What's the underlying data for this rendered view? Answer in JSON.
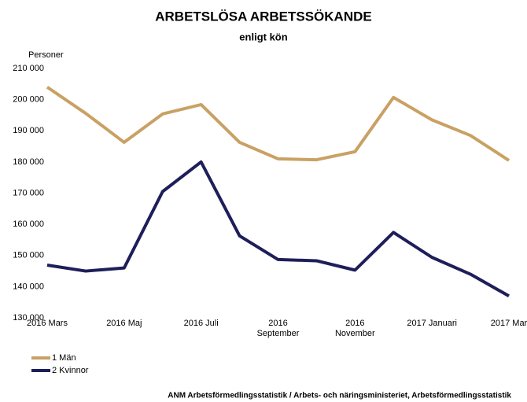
{
  "chart_data": {
    "type": "line",
    "title": "ARBETSLÖSA ARBETSSÖKANDE",
    "subtitle": "enligt kön",
    "y_label": "Personer",
    "note": "ANM Arbetsförmedlingsstatistik / Arbets- och näringsministeriet, Arbetsförmedlingsstatistik",
    "categories": [
      "2016 Mars",
      null,
      "2016 Maj",
      null,
      "2016 Juli",
      null,
      "2016\nSeptember",
      null,
      "2016\nNovember",
      null,
      "2017 Januari",
      null,
      "2017 Mar"
    ],
    "series": [
      {
        "name": "1 Män",
        "color": "#c9a164",
        "values": [
          204000,
          195600,
          186300,
          195400,
          198400,
          186300,
          181000,
          180700,
          183300,
          200700,
          193500,
          188500,
          180500
        ]
      },
      {
        "name": "2 Kvinnor",
        "color": "#1e1e5a",
        "values": [
          146900,
          145000,
          146000,
          170500,
          180000,
          156300,
          148700,
          148300,
          145300,
          157400,
          149400,
          144000,
          137000
        ]
      }
    ],
    "ylim": [
      130000,
      210000
    ],
    "yticks": [
      {
        "value": 130000,
        "label": "130 000"
      },
      {
        "value": 140000,
        "label": "140 000"
      },
      {
        "value": 150000,
        "label": "150 000"
      },
      {
        "value": 160000,
        "label": "160 000"
      },
      {
        "value": 170000,
        "label": "170 000"
      },
      {
        "value": 180000,
        "label": "180 000"
      },
      {
        "value": 190000,
        "label": "190 000"
      },
      {
        "value": 200000,
        "label": "200 000"
      },
      {
        "value": 210000,
        "label": "210 000"
      }
    ],
    "grid": false,
    "legend": "bottom-left"
  }
}
